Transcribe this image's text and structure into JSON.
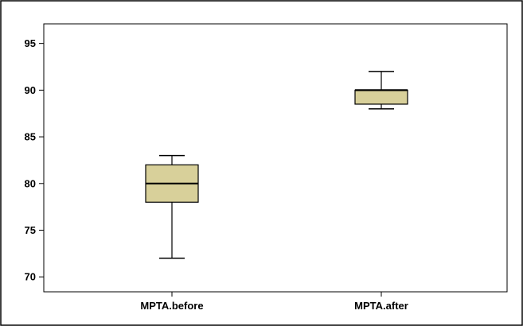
{
  "chart_data": {
    "type": "boxplot",
    "title": "",
    "xlabel": "",
    "ylabel": "",
    "ylim": [
      68.4,
      97.1
    ],
    "yticks": [
      70,
      75,
      80,
      85,
      90,
      95
    ],
    "yticks_labels": [
      "70",
      "75",
      "80",
      "85",
      "90",
      "95"
    ],
    "categories": [
      "MPTA.before",
      "MPTA.after"
    ],
    "boxes": [
      {
        "min": 72,
        "q1": 78,
        "median": 80,
        "q3": 82,
        "max": 83
      },
      {
        "min": 88,
        "q1": 88.5,
        "median": 90,
        "q3": 90,
        "max": 92
      }
    ],
    "box_fill": "#d8d09a",
    "grid": false
  }
}
